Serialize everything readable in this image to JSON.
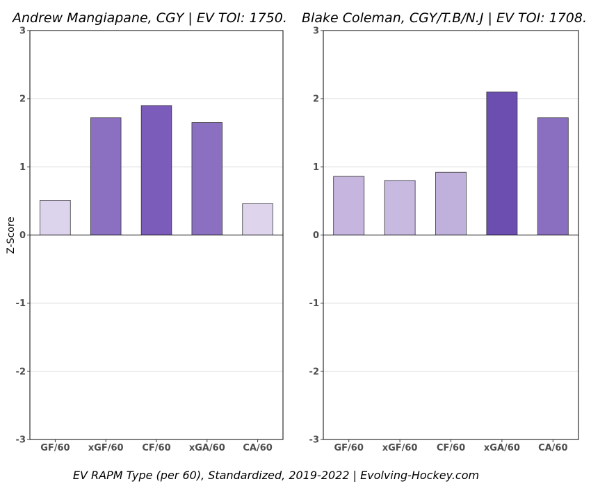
{
  "chart_data": [
    {
      "type": "bar",
      "title": "Andrew Mangiapane, CGY  |  EV TOI: 1750.",
      "ylabel": "Z-Score",
      "ylim": [
        -3,
        3
      ],
      "yticks": [
        -3,
        -2,
        -1,
        0,
        1,
        2,
        3
      ],
      "grid": true,
      "categories": [
        "GF/60",
        "xGF/60",
        "CF/60",
        "xGA/60",
        "CA/60"
      ],
      "values": [
        0.51,
        1.72,
        1.9,
        1.65,
        0.46
      ],
      "colors": [
        "#dcd3ec",
        "#8b70c1",
        "#7b5cba",
        "#8b70c1",
        "#ded5ed"
      ]
    },
    {
      "type": "bar",
      "title": "Blake Coleman, CGY/T.B/N.J  |  EV TOI: 1708.",
      "ylabel": "",
      "ylim": [
        -3,
        3
      ],
      "yticks": [
        -3,
        -2,
        -1,
        0,
        1,
        2,
        3
      ],
      "grid": true,
      "categories": [
        "GF/60",
        "xGF/60",
        "CF/60",
        "xGA/60",
        "CA/60"
      ],
      "values": [
        0.86,
        0.8,
        0.92,
        2.1,
        1.72
      ],
      "colors": [
        "#c5b5df",
        "#c7b9e0",
        "#c0b0dc",
        "#6c4eb0",
        "#8a6fc0"
      ]
    }
  ],
  "caption": "EV RAPM Type (per 60), Standardized, 2019-2022    |    Evolving-Hockey.com"
}
